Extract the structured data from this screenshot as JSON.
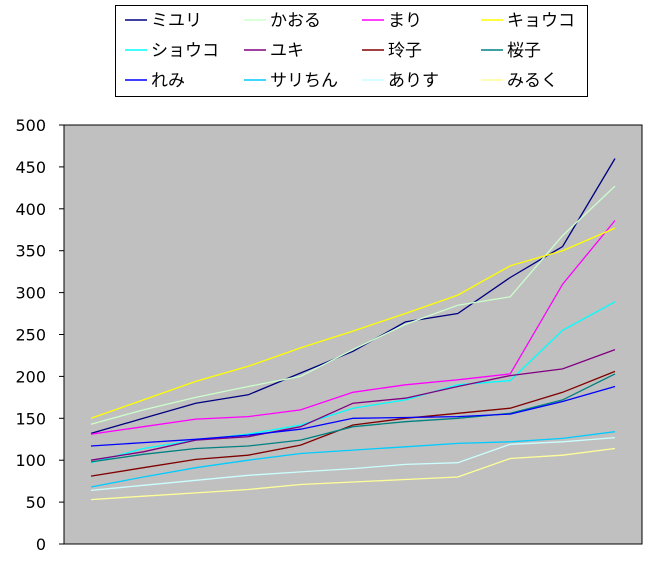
{
  "chart_data": {
    "type": "line",
    "title": "",
    "xlabel": "",
    "ylabel": "",
    "ylim": [
      0,
      500
    ],
    "yticks": [
      0,
      50,
      100,
      150,
      200,
      250,
      300,
      350,
      400,
      450,
      500
    ],
    "x": [
      1,
      2,
      3,
      4,
      5,
      6,
      7,
      8,
      9,
      10,
      11
    ],
    "grid": false,
    "legend": "top",
    "plot_background": "#c0c0c0",
    "series": [
      {
        "name": "ミユリ",
        "color": "#000080",
        "values": [
          132,
          150,
          168,
          178,
          204,
          230,
          265,
          275,
          318,
          355,
          460
        ]
      },
      {
        "name": "かおる",
        "color": "#ccffcc",
        "values": [
          143,
          160,
          175,
          188,
          200,
          232,
          262,
          285,
          295,
          368,
          427
        ]
      },
      {
        "name": "まり",
        "color": "#ff00ff",
        "values": [
          131,
          140,
          149,
          152,
          160,
          181,
          190,
          196,
          203,
          310,
          386
        ]
      },
      {
        "name": "キョウコ",
        "color": "#ffff00",
        "values": [
          150,
          172,
          194,
          212,
          234,
          254,
          275,
          297,
          332,
          350,
          377
        ]
      },
      {
        "name": "ショウコ",
        "color": "#00ffff",
        "values": [
          97,
          114,
          124,
          131,
          142,
          162,
          172,
          190,
          195,
          255,
          289
        ]
      },
      {
        "name": "ユキ",
        "color": "#800080",
        "values": [
          100,
          110,
          124,
          128,
          140,
          168,
          174,
          188,
          201,
          209,
          232
        ]
      },
      {
        "name": "玲子",
        "color": "#800000",
        "values": [
          81,
          91,
          101,
          106,
          118,
          142,
          150,
          156,
          162,
          181,
          206
        ]
      },
      {
        "name": "桜子",
        "color": "#008080",
        "values": [
          98,
          107,
          114,
          117,
          124,
          140,
          146,
          150,
          156,
          172,
          203
        ]
      },
      {
        "name": "れみ",
        "color": "#0000ff",
        "values": [
          117,
          121,
          125,
          130,
          137,
          150,
          151,
          152,
          155,
          170,
          188
        ]
      },
      {
        "name": "サリちん",
        "color": "#00ccff",
        "values": [
          68,
          80,
          91,
          100,
          108,
          112,
          116,
          120,
          122,
          126,
          134
        ]
      },
      {
        "name": "ありす",
        "color": "#ccffff",
        "values": [
          64,
          70,
          76,
          82,
          86,
          90,
          95,
          97,
          119,
          122,
          127
        ]
      },
      {
        "name": "みるく",
        "color": "#ffff99",
        "values": [
          53,
          57,
          61,
          65,
          71,
          74,
          77,
          80,
          102,
          106,
          114
        ]
      }
    ]
  }
}
